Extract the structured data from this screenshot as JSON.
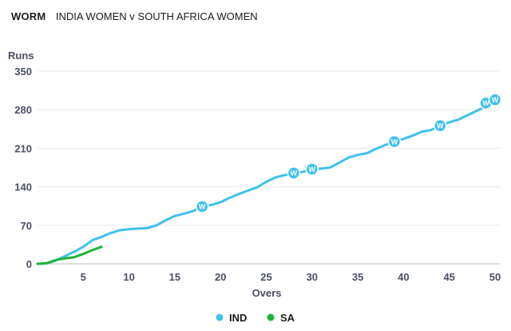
{
  "chart_data": {
    "type": "line",
    "title_bold": "WORM",
    "title": "INDIA WOMEN v SOUTH AFRICA WOMEN",
    "xlabel": "Overs",
    "ylabel": "Runs",
    "xlim": [
      0,
      50
    ],
    "ylim": [
      0,
      350
    ],
    "xticks": [
      5,
      10,
      15,
      20,
      25,
      30,
      35,
      40,
      45,
      50
    ],
    "yticks": [
      0,
      70,
      140,
      210,
      280,
      350
    ],
    "grid": true,
    "legend_position": "bottom-center",
    "wicket_marker_label": "W",
    "series": [
      {
        "name": "IND",
        "color": "#3ec1ee",
        "x": [
          0,
          1,
          2,
          3,
          4,
          5,
          6,
          7,
          8,
          9,
          10,
          11,
          12,
          13,
          14,
          15,
          16,
          17,
          18,
          19,
          20,
          21,
          22,
          23,
          24,
          25,
          26,
          27,
          28,
          29,
          30,
          31,
          32,
          33,
          34,
          35,
          36,
          37,
          38,
          39,
          40,
          41,
          42,
          43,
          44,
          45,
          46,
          47,
          48,
          49,
          50
        ],
        "values": [
          0,
          1,
          6,
          14,
          22,
          31,
          43,
          49,
          56,
          61,
          63,
          64,
          65,
          70,
          79,
          87,
          91,
          96,
          104,
          107,
          112,
          120,
          127,
          133,
          139,
          149,
          157,
          161,
          165,
          167,
          172,
          173,
          175,
          184,
          193,
          198,
          201,
          209,
          216,
          222,
          227,
          233,
          240,
          243,
          251,
          257,
          262,
          270,
          278,
          286,
          298
        ],
        "wickets": [
          {
            "over": 18,
            "runs": 104
          },
          {
            "over": 28,
            "runs": 165
          },
          {
            "over": 30,
            "runs": 172
          },
          {
            "over": 39,
            "runs": 222
          },
          {
            "over": 44,
            "runs": 251
          },
          {
            "over": 49,
            "runs": 292
          },
          {
            "over": 50,
            "runs": 298
          }
        ]
      },
      {
        "name": "SA",
        "color": "#1fb53a",
        "x": [
          0,
          1,
          2,
          3,
          4,
          5,
          6,
          7
        ],
        "values": [
          0,
          1,
          7,
          10,
          12,
          18,
          25,
          31
        ],
        "wickets": []
      }
    ]
  }
}
